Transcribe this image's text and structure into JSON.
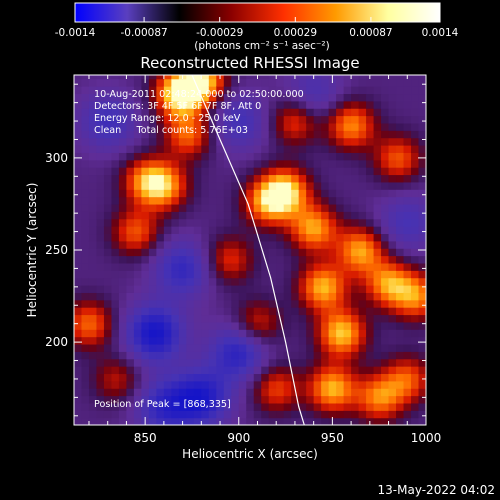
{
  "chart_data": {
    "type": "heatmap",
    "title": "Reconstructed RHESSI Image",
    "xlabel": "Heliocentric X (arcsec)",
    "ylabel": "Heliocentric Y (arcsec)",
    "xlim": [
      812,
      1000
    ],
    "ylim": [
      155,
      345
    ],
    "x_ticks": [
      "850",
      "900",
      "950",
      "1000"
    ],
    "x_tick_values": [
      850,
      900,
      950,
      1000
    ],
    "y_ticks": [
      "200",
      "250",
      "300"
    ],
    "y_tick_values": [
      200,
      250,
      300
    ],
    "colorbar": {
      "range": [
        -0.0014,
        0.0014
      ],
      "tick_labels": [
        "-0.0014",
        "-0.00087",
        "-0.00029",
        "0.00029",
        "0.00087",
        "0.0014"
      ],
      "units": "(photons cm⁻² s⁻¹ asec⁻²)",
      "colors": [
        "#0000ff",
        "#5a3fbf",
        "#000000",
        "#8b0000",
        "#ff3000",
        "#ff9a00",
        "#ffffa0",
        "#ffffff"
      ]
    },
    "info_lines": [
      "10-Aug-2011 02:48:24.000 to 02:50:00.000",
      "Detectors: 3F 4F 5F 6F 7F 8F, Att 0",
      "Energy Range: 12.0 - 25.0 keV",
      "Clean     Total counts: 5.76E+03"
    ],
    "peak_label": "Position of Peak = [868,335]",
    "peak_position": [
      868,
      335
    ],
    "limb_curve": [
      [
        875,
        345
      ],
      [
        890,
        310
      ],
      [
        905,
        275
      ],
      [
        917,
        235
      ],
      [
        925,
        200
      ],
      [
        932,
        165
      ],
      [
        935,
        155
      ]
    ],
    "bright_regions": [
      {
        "x": 868,
        "y": 335,
        "level": 1.0
      },
      {
        "x": 880,
        "y": 342,
        "level": 0.95
      },
      {
        "x": 925,
        "y": 282,
        "level": 0.92
      },
      {
        "x": 915,
        "y": 276,
        "level": 0.7
      },
      {
        "x": 940,
        "y": 262,
        "level": 0.8
      },
      {
        "x": 860,
        "y": 285,
        "level": 0.75
      },
      {
        "x": 850,
        "y": 288,
        "level": 0.6
      },
      {
        "x": 845,
        "y": 260,
        "level": 0.6
      },
      {
        "x": 873,
        "y": 313,
        "level": 0.65
      },
      {
        "x": 960,
        "y": 318,
        "level": 0.75
      },
      {
        "x": 985,
        "y": 300,
        "level": 0.6
      },
      {
        "x": 945,
        "y": 230,
        "level": 0.85
      },
      {
        "x": 955,
        "y": 205,
        "level": 0.9
      },
      {
        "x": 965,
        "y": 250,
        "level": 0.8
      },
      {
        "x": 980,
        "y": 232,
        "level": 0.75
      },
      {
        "x": 995,
        "y": 225,
        "level": 0.7
      },
      {
        "x": 950,
        "y": 175,
        "level": 0.85
      },
      {
        "x": 975,
        "y": 170,
        "level": 0.7
      },
      {
        "x": 990,
        "y": 180,
        "level": 0.6
      },
      {
        "x": 920,
        "y": 175,
        "level": 0.55
      },
      {
        "x": 910,
        "y": 210,
        "level": 0.5
      },
      {
        "x": 820,
        "y": 210,
        "level": 0.65
      },
      {
        "x": 835,
        "y": 180,
        "level": 0.4
      },
      {
        "x": 930,
        "y": 320,
        "level": 0.55
      },
      {
        "x": 895,
        "y": 245,
        "level": 0.5
      }
    ],
    "dark_regions": [
      {
        "x": 855,
        "y": 205,
        "level": 1.0
      },
      {
        "x": 880,
        "y": 170,
        "level": 0.9
      },
      {
        "x": 900,
        "y": 195,
        "level": 0.8
      },
      {
        "x": 870,
        "y": 240,
        "level": 0.7
      },
      {
        "x": 830,
        "y": 320,
        "level": 0.6
      },
      {
        "x": 900,
        "y": 320,
        "level": 0.55
      },
      {
        "x": 990,
        "y": 265,
        "level": 0.5
      },
      {
        "x": 940,
        "y": 335,
        "level": 0.45
      },
      {
        "x": 860,
        "y": 165,
        "level": 0.7
      }
    ]
  },
  "footer": {
    "date": "13-May-2022 04:02"
  }
}
